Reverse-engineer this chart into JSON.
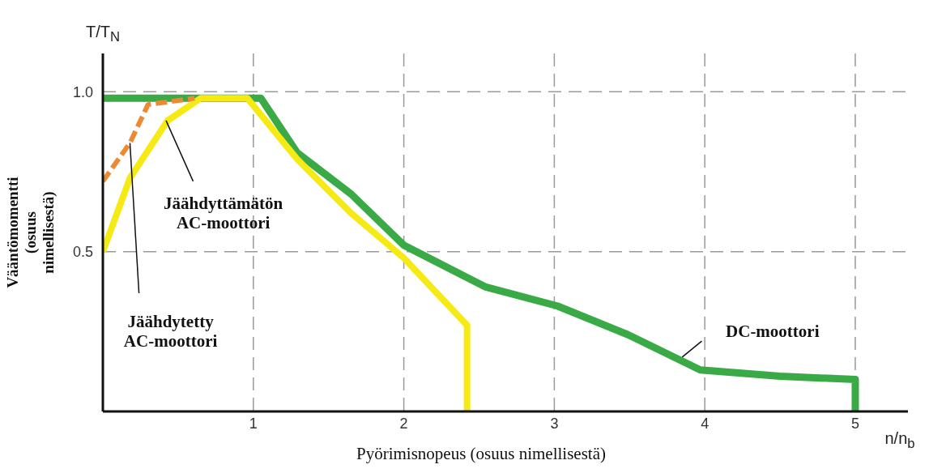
{
  "chart_data": {
    "type": "line",
    "xlabel": "Pyörimisnopeus (osuus nimellisestä)",
    "ylabel": "Vääntömomentti (osuus nimellisestä)",
    "annotations": [
      "T/T$_{N}$",
      "n/n$_{b}$"
    ],
    "xlim": [
      0,
      5.35
    ],
    "ylim": [
      0,
      1.12
    ],
    "xticks": [
      1,
      2,
      3,
      4,
      5
    ],
    "yticks": [
      0.5,
      {
        "value": 1,
        "label": "1.0"
      }
    ],
    "grid": true,
    "marker": "none",
    "line_style": "solid",
    "series": [
      {
        "name": "DC-moottori",
        "color": "#3aaa47",
        "x": [
          0,
          1.05,
          1.29,
          1.65,
          2.0,
          2.54,
          3.02,
          3.49,
          3.97,
          4.5,
          5.0,
          5.0
        ],
        "values": [
          0.98,
          0.98,
          0.81,
          0.68,
          0.52,
          0.39,
          0.33,
          0.24,
          0.13,
          0.11,
          0.1,
          0
        ]
      },
      {
        "name": "Jäähdyttämätön AC-moottori",
        "color": "#f5ea14",
        "x": [
          0,
          0.18,
          0.43,
          0.65,
          0.96,
          1.29,
          1.65,
          2.0,
          2.42,
          2.42
        ],
        "values": [
          0.5,
          0.73,
          0.91,
          0.98,
          0.98,
          0.79,
          0.62,
          0.48,
          0.27,
          0
        ]
      },
      {
        "name": "Jäähdytetty AC-moottori",
        "color": "#ec8a34",
        "line_style": "dashed",
        "x": [
          0,
          0.18,
          0.3,
          0.61
        ],
        "values": [
          0.72,
          0.84,
          0.96,
          0.98
        ]
      }
    ]
  }
}
